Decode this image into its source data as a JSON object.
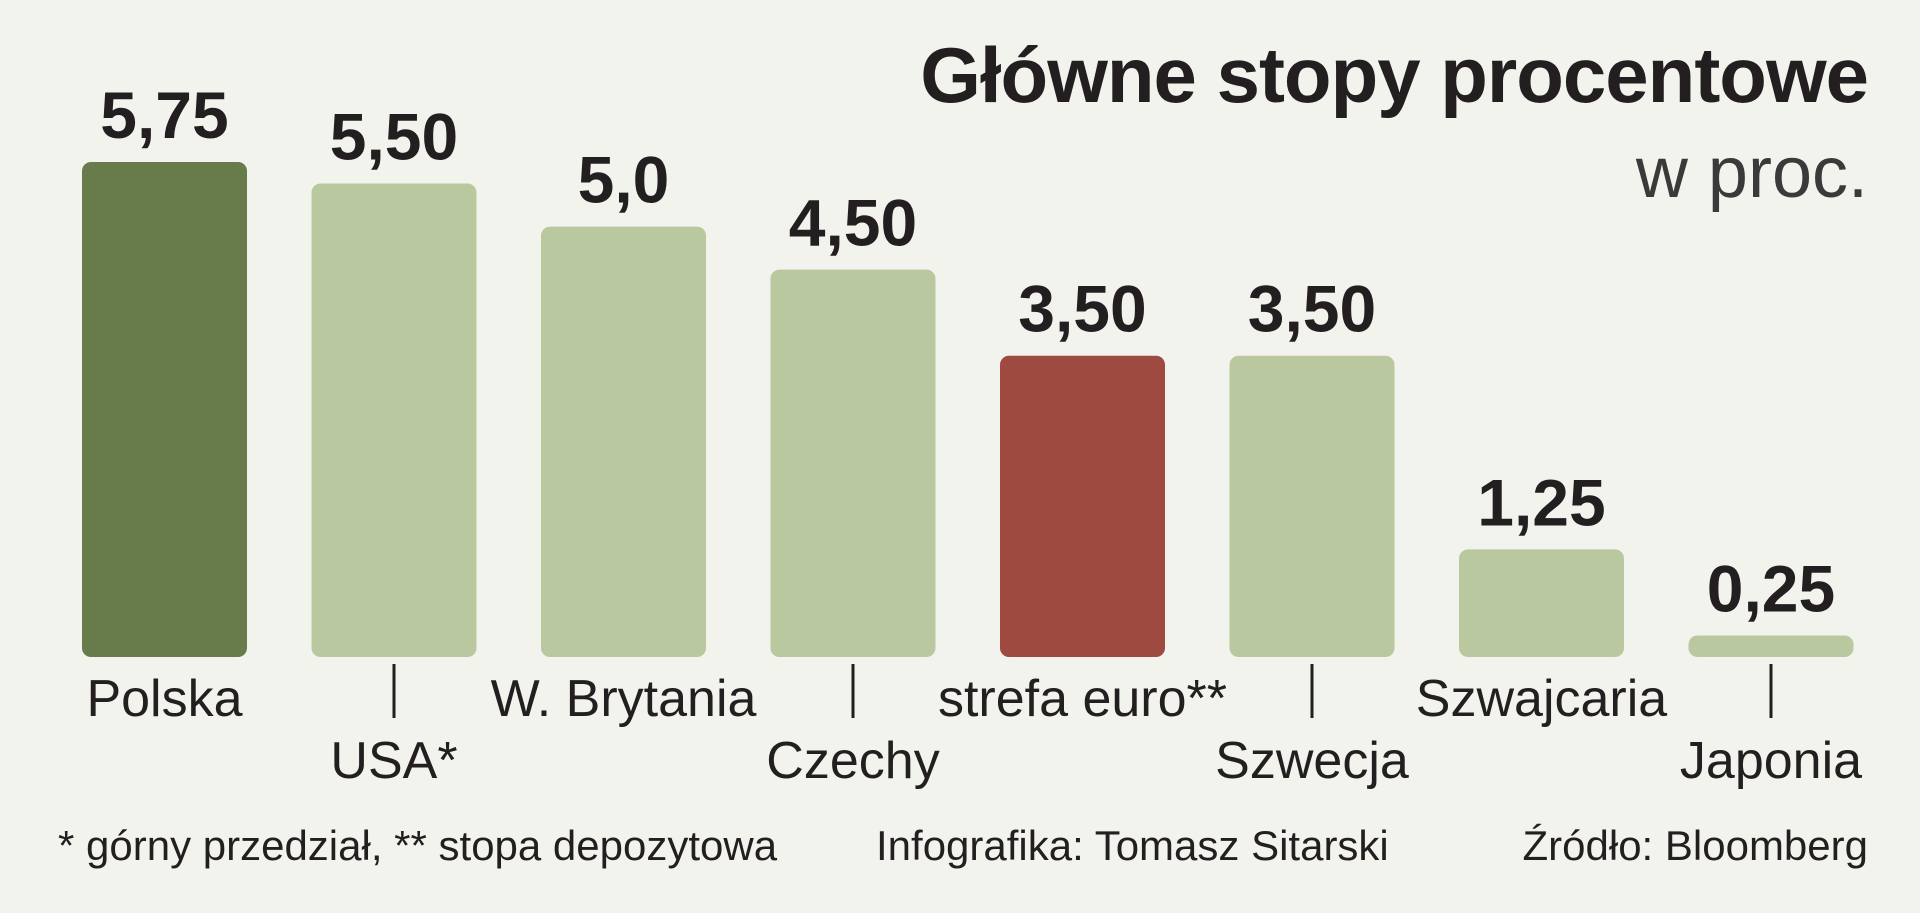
{
  "title": "Główne stopy procentowe",
  "subtitle": "w proc.",
  "footnote": "* górny przedział, ** stopa depozytowa",
  "credit": "Infografika: Tomasz Sitarski",
  "source": "Źródło: Bloomberg",
  "colors": {
    "highlight_poland": "#677b4b",
    "highlight_euro": "#9e4a40",
    "default_bar": "#b9c89f",
    "text": "#231f20",
    "background": "#f3f3ee"
  },
  "chart_data": {
    "type": "bar",
    "title": "Główne stopy procentowe",
    "subtitle": "w proc.",
    "xlabel": "",
    "ylabel": "",
    "ylim": [
      0,
      5.75
    ],
    "grid": false,
    "legend": "none",
    "categories": [
      "Polska",
      "USA*",
      "W. Brytania",
      "Czechy",
      "strefa euro**",
      "Szwecja",
      "Szwajcaria",
      "Japonia"
    ],
    "values": [
      5.75,
      5.5,
      5.0,
      4.5,
      3.5,
      3.5,
      1.25,
      0.25
    ],
    "value_labels": [
      "5,75",
      "5,50",
      "5,0",
      "4,50",
      "3,50",
      "3,50",
      "1,25",
      "0,25"
    ],
    "bar_colors": [
      "#677b4b",
      "#b9c89f",
      "#b9c89f",
      "#b9c89f",
      "#9e4a40",
      "#b9c89f",
      "#b9c89f",
      "#b9c89f"
    ]
  }
}
